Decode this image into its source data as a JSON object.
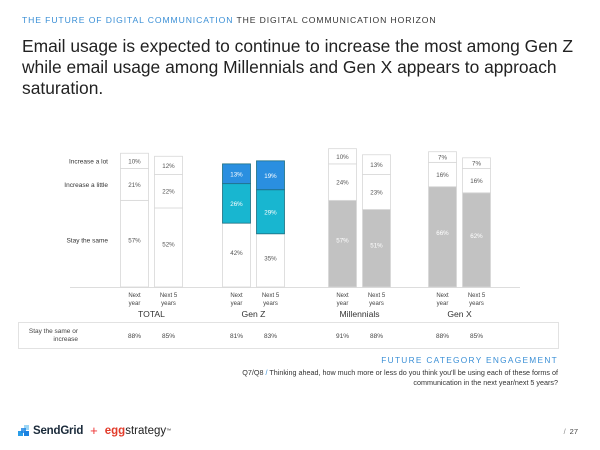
{
  "header": {
    "section_label": "THE FUTURE OF DIGITAL COMMUNICATION",
    "subsection_label": "THE DIGITAL COMMUNICATION HORIZON"
  },
  "title": "Email usage is expected to continue to increase the most among Gen Z while email usage among Millennials and Gen X appears to approach saturation.",
  "chart_data": {
    "type": "bar",
    "stacked": true,
    "title": "",
    "xlabel": "",
    "ylabel": "",
    "ylim": [
      0,
      100
    ],
    "grid": false,
    "legend_position": "left",
    "groups": [
      "TOTAL",
      "Gen Z",
      "Millennials",
      "Gen X"
    ],
    "bar_labels": [
      {
        "line1": "Next",
        "line2": "year"
      },
      {
        "line1": "Next 5",
        "line2": "years"
      }
    ],
    "series": [
      {
        "name": "Stay the same",
        "values": [
          57,
          52,
          42,
          35,
          57,
          51,
          66,
          62
        ]
      },
      {
        "name": "Increase a little",
        "values": [
          21,
          22,
          26,
          29,
          24,
          23,
          16,
          16
        ]
      },
      {
        "name": "Increase a lot",
        "values": [
          10,
          12,
          13,
          19,
          10,
          13,
          7,
          7
        ]
      }
    ],
    "summary_row": {
      "label_line1": "Stay the same or",
      "label_line2": "increase",
      "values": [
        88,
        85,
        81,
        83,
        91,
        88,
        88,
        85
      ]
    },
    "value_suffix": "%",
    "group_colors": {
      "TOTAL": {
        "base": "#ffffff",
        "little": "#ffffff",
        "lot": "#ffffff",
        "text": "#555555",
        "baseText": "#555555"
      },
      "Gen Z": {
        "base": "#ffffff",
        "little": "#18b6d0",
        "lot": "#2a8fe0",
        "text": "#ffffff",
        "baseText": "#555555"
      },
      "Millennials": {
        "base": "#c2c2c2",
        "little": "#ffffff",
        "lot": "#ffffff",
        "text": "#555555",
        "baseText": "#ffffff"
      },
      "Gen X": {
        "base": "#c2c2c2",
        "little": "#ffffff",
        "lot": "#ffffff",
        "text": "#555555",
        "baseText": "#ffffff"
      }
    }
  },
  "footer": {
    "heading": "FUTURE CATEGORY ENGAGEMENT",
    "question_id": "Q7/Q8",
    "separator": "/",
    "question_text": "Thinking ahead, how much more or less do you think you'll be using each of these forms of communication in the next year/next 5 years?"
  },
  "logos": {
    "sendgrid": "SendGrid",
    "plus": "+",
    "egg": "egg",
    "strategy": "strategy",
    "tm": "™"
  },
  "page": {
    "separator": "/",
    "number": "27"
  },
  "colors": {
    "accent": "#3a8fd6"
  }
}
